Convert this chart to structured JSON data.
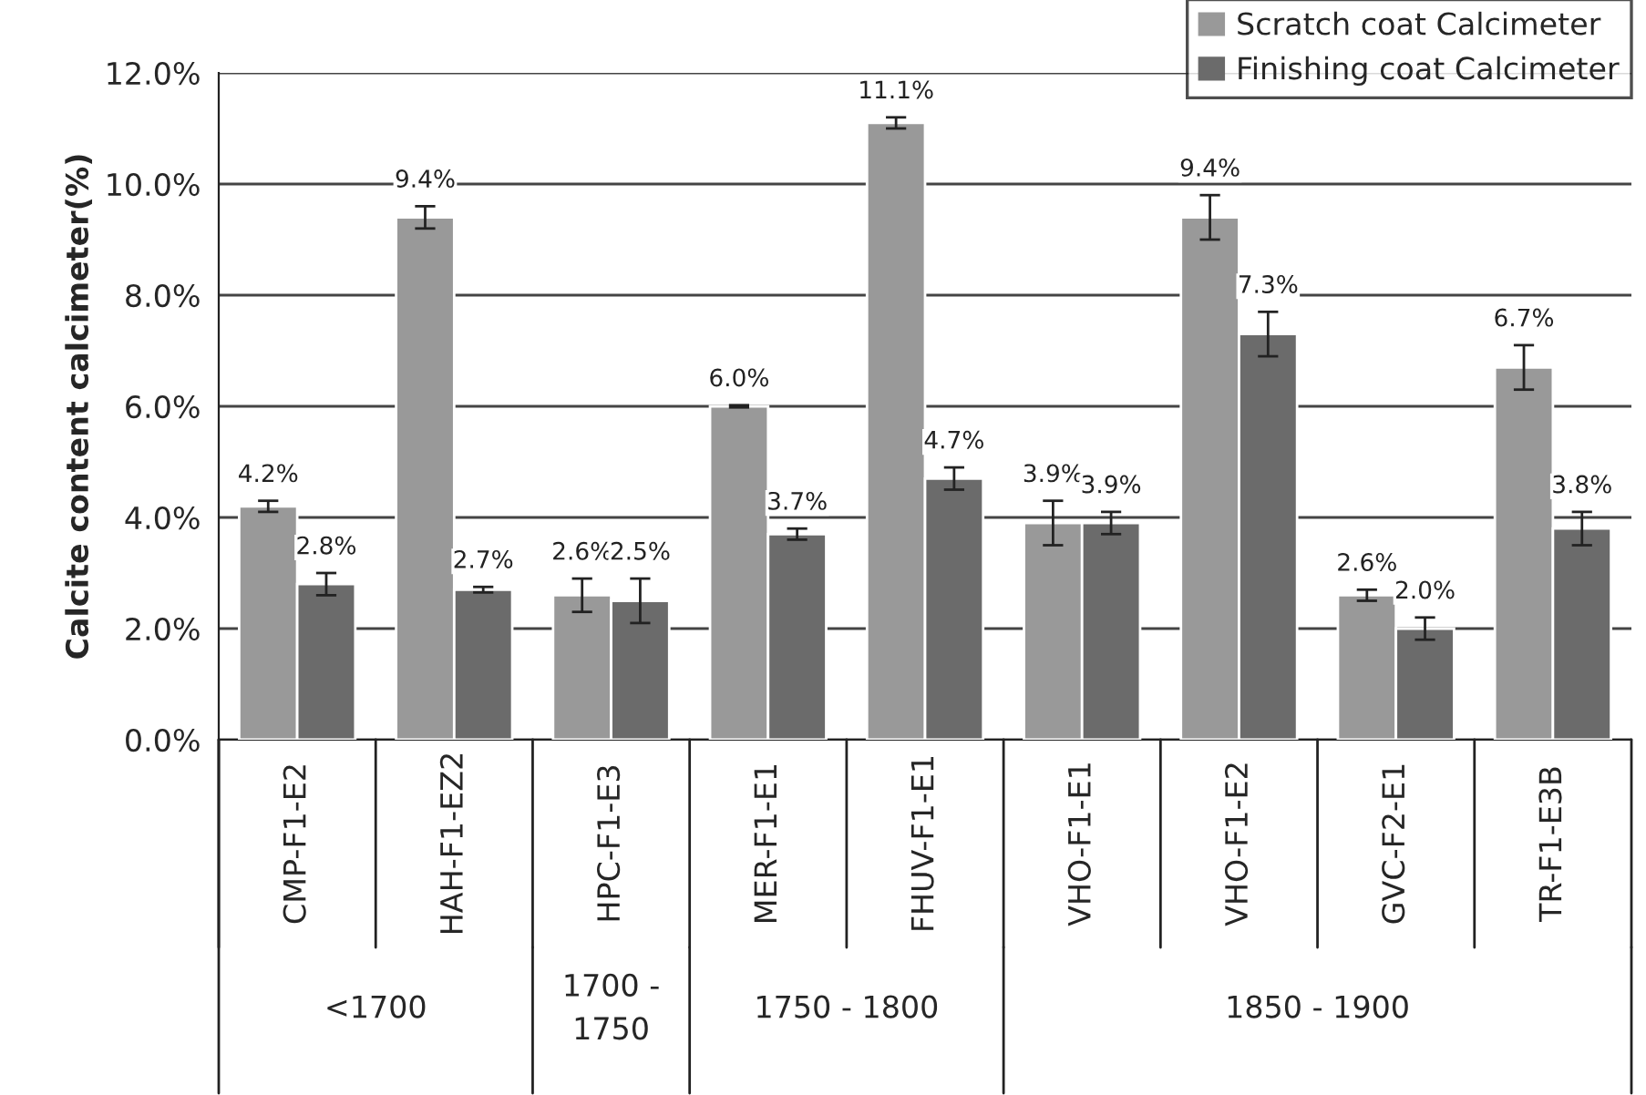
{
  "chart_data": {
    "type": "bar",
    "ylabel": "Calcite content calcimeter(%)",
    "categories": [
      "CMP-F1-E2",
      "HAH-F1-EZ2",
      "HPC-F1-E3",
      "MER-F1-E1",
      "FHUV-F1-E1",
      "VHO-F1-E1",
      "VHO-F1-E2",
      "GVC-F2-E1",
      "TR-F1-E3B"
    ],
    "series": [
      {
        "name": "Scratch coat Calcimeter",
        "color": "#999999",
        "values": [
          4.2,
          9.4,
          2.6,
          6.0,
          11.1,
          3.9,
          9.4,
          2.6,
          6.7
        ],
        "errors": [
          0.1,
          0.2,
          0.3,
          0.02,
          0.1,
          0.4,
          0.4,
          0.1,
          0.4
        ],
        "value_labels": [
          "4.2%",
          "9.4%",
          "2.6%",
          "6.0%",
          "11.1%",
          "3.9%",
          "9.4%",
          "2.6%",
          "6.7%"
        ]
      },
      {
        "name": "Finishing coat Calcimeter",
        "color": "#6b6b6b",
        "values": [
          2.8,
          2.7,
          2.5,
          3.7,
          4.7,
          3.9,
          7.3,
          2.0,
          3.8
        ],
        "errors": [
          0.2,
          0.05,
          0.4,
          0.1,
          0.2,
          0.2,
          0.4,
          0.2,
          0.3
        ],
        "value_labels": [
          "2.8%",
          "2.7%",
          "2.5%",
          "3.7%",
          "4.7%",
          "3.9%",
          "7.3%",
          "2.0%",
          "3.8%"
        ]
      }
    ],
    "ylim": [
      0,
      12
    ],
    "yticks": [
      {
        "value": 0,
        "label": "0.0%"
      },
      {
        "value": 2,
        "label": "2.0%"
      },
      {
        "value": 4,
        "label": "4.0%"
      },
      {
        "value": 6,
        "label": "6.0%"
      },
      {
        "value": 8,
        "label": "8.0%"
      },
      {
        "value": 10,
        "label": "10.0%"
      },
      {
        "value": 12,
        "label": "12.0%"
      }
    ],
    "grid": "y",
    "legend": "top right",
    "annotations": [
      "<1700",
      "1700 -\n1750",
      "1750 - 1800",
      "1850 - 1900"
    ]
  }
}
